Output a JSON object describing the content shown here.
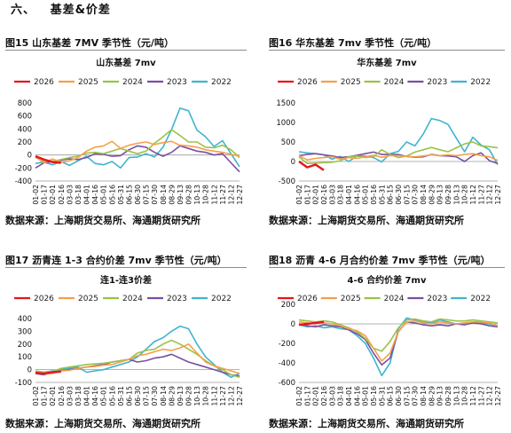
{
  "section": {
    "number": "六、",
    "title": "基差&价差"
  },
  "source_text": "数据来源：上海期货交易所、海通期货研究所",
  "colors": {
    "2026": "#e8141c",
    "2025": "#f5a04a",
    "2024": "#9bc24a",
    "2023": "#7a4fa0",
    "2022": "#3fb4cf"
  },
  "figures": [
    {
      "label": "图15",
      "title": "山东基差 7MV 季节性（元/吨）"
    },
    {
      "label": "图16",
      "title": "华东基差 7mv 季节性（元/吨）"
    },
    {
      "label": "图17",
      "title": "沥青连 1-3 合约价差 7mv 季节性（元/吨）"
    },
    {
      "label": "图18",
      "title": "沥青 4-6 月合约价差 7mv 季节性（元/吨）"
    }
  ],
  "chart_data": [
    {
      "type": "line",
      "title": "山东基差 7mv",
      "x": [
        "01-02",
        "01-17",
        "02-01",
        "02-16",
        "03-03",
        "03-18",
        "04-02",
        "04-17",
        "05-02",
        "05-17",
        "06-01",
        "06-16",
        "07-01",
        "07-16",
        "07-31",
        "08-15",
        "08-30",
        "09-14",
        "09-29",
        "10-14",
        "10-29",
        "11-13",
        "11-28",
        "12-13",
        "12-28"
      ],
      "xticks": [
        "01-02",
        "01-17",
        "02-01",
        "02-16",
        "03-03",
        "03-18",
        "04-01",
        "04-16",
        "05-01",
        "05-16",
        "05-31",
        "06-15",
        "06-30",
        "07-15",
        "07-30",
        "08-14",
        "08-29",
        "09-13",
        "09-28",
        "10-13",
        "10-28",
        "11-12",
        "11-27",
        "12-12",
        "12-27"
      ],
      "ylim": [
        -400,
        800
      ],
      "yticks": [
        -400,
        -200,
        0,
        200,
        400,
        600,
        800
      ],
      "series": [
        {
          "name": "2026",
          "values": [
            -20,
            -70,
            -110,
            -120,
            null,
            null,
            null,
            null,
            null,
            null,
            null,
            null,
            null,
            null,
            null,
            null,
            null,
            null,
            null,
            null,
            null,
            null,
            null,
            null,
            null
          ]
        },
        {
          "name": "2025",
          "values": [
            -30,
            -120,
            -60,
            -110,
            -90,
            -40,
            60,
            120,
            140,
            210,
            100,
            150,
            180,
            200,
            160,
            190,
            210,
            150,
            140,
            120,
            80,
            60,
            40,
            10,
            -20
          ]
        },
        {
          "name": "2024",
          "values": [
            -40,
            -90,
            -100,
            -70,
            -40,
            -20,
            30,
            40,
            20,
            60,
            100,
            60,
            20,
            60,
            180,
            280,
            390,
            300,
            200,
            200,
            120,
            110,
            150,
            80,
            -40
          ]
        },
        {
          "name": "2023",
          "values": [
            -200,
            -120,
            -100,
            -80,
            -60,
            -70,
            -40,
            20,
            10,
            -20,
            -10,
            80,
            140,
            120,
            40,
            -20,
            40,
            140,
            100,
            60,
            40,
            0,
            20,
            -120,
            -260
          ]
        },
        {
          "name": "2022",
          "values": [
            -130,
            -110,
            -150,
            -100,
            -160,
            -90,
            -20,
            -130,
            -150,
            -100,
            -200,
            -40,
            -30,
            20,
            -30,
            120,
            390,
            720,
            680,
            380,
            280,
            130,
            220,
            20,
            -180
          ]
        }
      ]
    },
    {
      "type": "line",
      "title": "华东基差 7mv",
      "x": [
        "01-02",
        "01-17",
        "02-01",
        "02-16",
        "03-03",
        "03-18",
        "04-02",
        "04-17",
        "05-02",
        "05-17",
        "06-01",
        "06-16",
        "07-01",
        "07-16",
        "07-31",
        "08-15",
        "08-30",
        "09-14",
        "09-29",
        "10-14",
        "10-29",
        "11-13",
        "11-28",
        "12-13",
        "12-28"
      ],
      "xticks": [
        "01-02",
        "01-17",
        "02-01",
        "02-16",
        "03-03",
        "03-18",
        "04-01",
        "04-16",
        "05-01",
        "05-16",
        "05-31",
        "06-15",
        "06-30",
        "07-15",
        "07-30",
        "08-14",
        "08-29",
        "09-13",
        "09-28",
        "10-13",
        "10-28",
        "11-12",
        "11-27",
        "12-12",
        "12-27"
      ],
      "ylim": [
        -500,
        1500
      ],
      "yticks": [
        -500,
        0,
        500,
        1000,
        1500
      ],
      "series": [
        {
          "name": "2026",
          "values": [
            0,
            -150,
            -80,
            -220,
            null,
            null,
            null,
            null,
            null,
            null,
            null,
            null,
            null,
            null,
            null,
            null,
            null,
            null,
            null,
            null,
            null,
            null,
            null,
            null,
            null
          ]
        },
        {
          "name": "2025",
          "values": [
            150,
            40,
            80,
            100,
            120,
            60,
            100,
            80,
            120,
            160,
            110,
            150,
            150,
            130,
            120,
            140,
            170,
            150,
            170,
            150,
            180,
            200,
            150,
            120,
            30
          ]
        },
        {
          "name": "2024",
          "values": [
            120,
            -50,
            -40,
            -30,
            -20,
            20,
            120,
            140,
            100,
            120,
            300,
            180,
            100,
            140,
            240,
            300,
            360,
            300,
            250,
            350,
            450,
            500,
            400,
            380,
            350
          ]
        },
        {
          "name": "2023",
          "values": [
            150,
            180,
            200,
            170,
            140,
            100,
            120,
            160,
            200,
            240,
            180,
            180,
            180,
            130,
            110,
            120,
            180,
            150,
            140,
            120,
            0,
            150,
            220,
            20,
            -50
          ]
        },
        {
          "name": "2022",
          "values": [
            250,
            220,
            200,
            170,
            60,
            130,
            0,
            140,
            140,
            100,
            -10,
            200,
            260,
            500,
            400,
            700,
            1100,
            1050,
            950,
            600,
            250,
            620,
            420,
            300,
            -80
          ]
        }
      ]
    },
    {
      "type": "line",
      "title": "连1-连3价差",
      "x": [
        "01-02",
        "01-17",
        "02-01",
        "02-16",
        "03-03",
        "03-18",
        "04-02",
        "04-17",
        "05-02",
        "05-17",
        "06-01",
        "06-16",
        "07-01",
        "07-16",
        "07-31",
        "08-15",
        "08-30",
        "09-14",
        "09-29",
        "10-14",
        "10-29",
        "11-13",
        "11-28",
        "12-13",
        "12-28"
      ],
      "xticks": [
        "01-02",
        "01-17",
        "02-01",
        "02-16",
        "03-03",
        "03-18",
        "04-01",
        "04-16",
        "05-01",
        "05-16",
        "05-31",
        "06-15",
        "06-30",
        "07-15",
        "07-30",
        "08-14",
        "08-29",
        "09-13",
        "09-28",
        "10-13",
        "10-28",
        "11-12",
        "11-27",
        "12-12",
        "12-27"
      ],
      "ylim": [
        -100,
        400
      ],
      "yticks": [
        -100,
        0,
        100,
        200,
        300,
        400
      ],
      "series": [
        {
          "name": "2026",
          "values": [
            -25,
            -30,
            -20,
            -15,
            null,
            null,
            null,
            null,
            null,
            null,
            null,
            null,
            null,
            null,
            null,
            null,
            null,
            null,
            null,
            null,
            null,
            null,
            null,
            null,
            null
          ]
        },
        {
          "name": "2025",
          "values": [
            -20,
            -35,
            -30,
            -10,
            -5,
            10,
            20,
            25,
            35,
            40,
            60,
            80,
            110,
            120,
            140,
            160,
            150,
            170,
            200,
            130,
            60,
            30,
            10,
            -10,
            -30
          ]
        },
        {
          "name": "2024",
          "values": [
            -10,
            -20,
            -15,
            10,
            20,
            30,
            40,
            45,
            50,
            60,
            70,
            80,
            130,
            150,
            160,
            200,
            230,
            200,
            160,
            120,
            70,
            30,
            0,
            -40,
            -60
          ]
        },
        {
          "name": "2023",
          "values": [
            -30,
            -40,
            -20,
            -10,
            0,
            10,
            20,
            30,
            40,
            60,
            70,
            80,
            60,
            70,
            90,
            100,
            120,
            90,
            60,
            40,
            20,
            0,
            -20,
            -40,
            -50
          ]
        },
        {
          "name": "2022",
          "values": [
            -15,
            -20,
            -10,
            0,
            10,
            20,
            -20,
            -10,
            0,
            20,
            40,
            60,
            100,
            160,
            220,
            250,
            300,
            340,
            320,
            200,
            100,
            40,
            -20,
            -60,
            -30
          ]
        }
      ]
    },
    {
      "type": "line",
      "title": "4-6 合约价差 7mv",
      "x": [
        "01-02",
        "01-17",
        "02-01",
        "02-16",
        "03-03",
        "03-18",
        "04-02",
        "04-17",
        "05-02",
        "05-17",
        "06-01",
        "06-16",
        "07-01",
        "07-16",
        "07-31",
        "08-15",
        "08-30",
        "09-14",
        "09-29",
        "10-14",
        "10-29",
        "11-13",
        "11-28",
        "12-13",
        "12-28"
      ],
      "xticks": [
        "01-02",
        "01-17",
        "02-01",
        "02-16",
        "03-03",
        "03-18",
        "04-01",
        "04-16",
        "05-01",
        "05-16",
        "05-31",
        "06-15",
        "06-30",
        "07-15",
        "07-30",
        "08-14",
        "08-29",
        "09-13",
        "09-28",
        "10-13",
        "10-28",
        "11-12",
        "11-27",
        "12-12",
        "12-27"
      ],
      "ylim": [
        -600,
        200
      ],
      "yticks": [
        -600,
        -400,
        -200,
        0,
        200
      ],
      "series": [
        {
          "name": "2026",
          "values": [
            -10,
            0,
            10,
            20,
            null,
            null,
            null,
            null,
            null,
            null,
            null,
            null,
            null,
            null,
            null,
            null,
            null,
            null,
            null,
            null,
            null,
            null,
            null,
            null,
            null
          ]
        },
        {
          "name": "2025",
          "values": [
            20,
            10,
            0,
            10,
            0,
            -20,
            -50,
            -70,
            -120,
            -250,
            -380,
            -300,
            -80,
            20,
            30,
            10,
            0,
            20,
            10,
            0,
            10,
            20,
            20,
            10,
            -20
          ]
        },
        {
          "name": "2024",
          "values": [
            40,
            30,
            20,
            30,
            20,
            -10,
            -40,
            -80,
            -150,
            -250,
            -280,
            -180,
            -40,
            40,
            50,
            30,
            20,
            50,
            40,
            30,
            30,
            40,
            30,
            20,
            10
          ]
        },
        {
          "name": "2023",
          "values": [
            0,
            -20,
            -30,
            -10,
            -20,
            -30,
            -60,
            -100,
            -160,
            -300,
            -420,
            -350,
            -80,
            20,
            10,
            -10,
            -20,
            -10,
            -20,
            0,
            -10,
            10,
            0,
            -20,
            -30
          ]
        },
        {
          "name": "2022",
          "values": [
            -10,
            -30,
            -20,
            -40,
            -30,
            -50,
            -60,
            -120,
            -200,
            -350,
            -530,
            -400,
            -50,
            60,
            40,
            20,
            10,
            40,
            20,
            0,
            10,
            20,
            10,
            0,
            -20
          ]
        }
      ]
    }
  ]
}
